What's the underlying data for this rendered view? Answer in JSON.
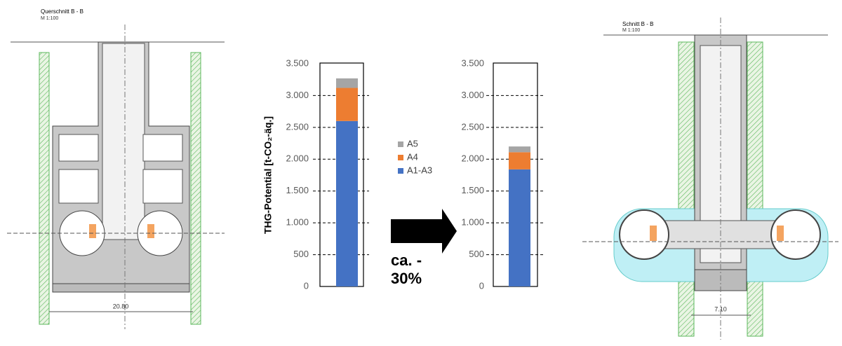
{
  "chart_data": [
    {
      "type": "stacked-bar",
      "y_label": "THG-Potential [t-CO₂-äq.]",
      "ylim": [
        0,
        3500
      ],
      "yticks": [
        0,
        500,
        {
          "value": 1000,
          "label": "1.000"
        },
        {
          "value": 1500,
          "label": "1.500"
        },
        {
          "value": 2000,
          "label": "2.000"
        },
        {
          "value": 2500,
          "label": "2.500"
        },
        {
          "value": 3000,
          "label": "3.000"
        },
        {
          "value": 3500,
          "label": "3.500"
        }
      ],
      "grid": true,
      "series": [
        {
          "name": "A1-A3",
          "color": "#4472c4",
          "values": [
            2600
          ]
        },
        {
          "name": "A4",
          "color": "#ed7d31",
          "values": [
            520
          ]
        },
        {
          "name": "A5",
          "color": "#a5a5a5",
          "values": [
            150
          ]
        }
      ]
    },
    {
      "type": "stacked-bar",
      "ylim": [
        0,
        3500
      ],
      "yticks": [
        0,
        500,
        {
          "value": 1000,
          "label": "1.000"
        },
        {
          "value": 1500,
          "label": "1.500"
        },
        {
          "value": 2000,
          "label": "2.000"
        },
        {
          "value": 2500,
          "label": "2.500"
        },
        {
          "value": 3000,
          "label": "3.000"
        },
        {
          "value": 3500,
          "label": "3.500"
        }
      ],
      "grid": true,
      "series": [
        {
          "color": "#4472c4",
          "values": [
            1840
          ]
        },
        {
          "color": "#ed7d31",
          "values": [
            270
          ]
        },
        {
          "color": "#a5a5a5",
          "values": [
            90
          ]
        }
      ]
    }
  ],
  "annotation": [
    "ca. -",
    "30%"
  ],
  "drawings": [
    {
      "title": "Querschnitt B - B",
      "scale": "M 1:100",
      "dimension": "20.80"
    },
    {
      "title": "Schnitt B - B",
      "scale": "M 1:100",
      "dimension": "7.10"
    }
  ]
}
